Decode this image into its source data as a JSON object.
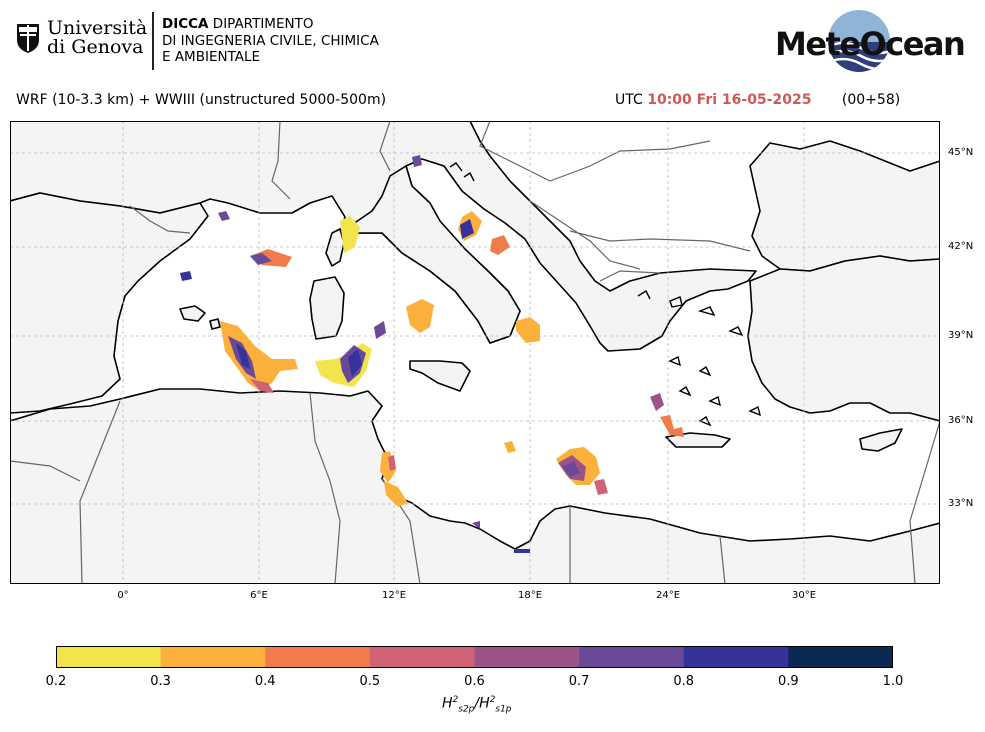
{
  "header": {
    "university_line1": "Università",
    "university_line2": "di Genova",
    "dept_abbrev": "DICCA",
    "dept_line1_rest": "DIPARTIMENTO",
    "dept_line2": "DI INGEGNERIA CIVILE, CHIMICA",
    "dept_line3": "E AMBIENTALE",
    "brand_logo_text": "MeteOcean"
  },
  "forecast": {
    "model_title": "WRF (10-3.3 km) + WWIII (unstructured 5000-500m)",
    "utc_label": "UTC",
    "datetime": "10:00 Fri 16-05-2025",
    "lead_time": "(00+58)"
  },
  "map": {
    "lat_labels": [
      "45°N",
      "42°N",
      "39°N",
      "36°N",
      "33°N"
    ],
    "lon_labels": [
      "0°",
      "6°E",
      "12°E",
      "18°E",
      "24°E",
      "30°E"
    ],
    "colors": {
      "land": "#f4f4f4",
      "sea": "#ffffff",
      "coastline": "#000000",
      "borders": "#666666",
      "grid": "#bbbbbb"
    }
  },
  "colorbar": {
    "ticks": [
      "0.2",
      "0.3",
      "0.4",
      "0.5",
      "0.6",
      "0.7",
      "0.8",
      "0.9",
      "1.0"
    ],
    "colors": [
      "#f2e44b",
      "#fbb03b",
      "#f07c4c",
      "#cf6274",
      "#9c5387",
      "#6a4a98",
      "#35329a",
      "#0b2a52"
    ],
    "label": "H²s2p / H²s1p",
    "label_base": "H",
    "label_sub1": "s2p",
    "label_sub2": "s1p",
    "label_sup": "2"
  }
}
